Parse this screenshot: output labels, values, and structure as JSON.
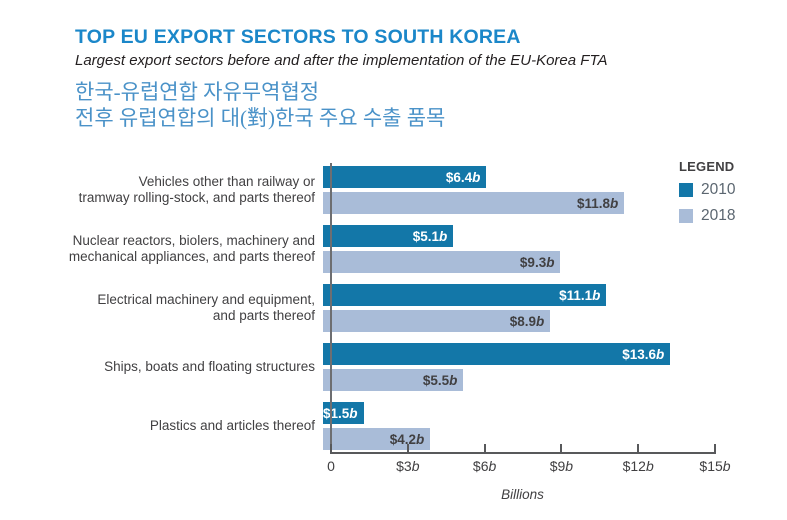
{
  "header": {
    "title": "TOP EU EXPORT SECTORS TO SOUTH KOREA",
    "subtitle": "Largest export sectors before and after the implementation of the EU-Korea FTA",
    "korean_line1": "한국-유럽연합 자유무역협정",
    "korean_line2": "전후 유럽연합의 대(對)한국 주요 수출 품목"
  },
  "legend": {
    "title": "LEGEND",
    "items": [
      {
        "label": "2010",
        "color": "#1377a8"
      },
      {
        "label": "2018",
        "color": "#a9bcd8"
      }
    ]
  },
  "chart_data": {
    "type": "bar",
    "orientation": "horizontal",
    "title": "TOP EU EXPORT SECTORS TO SOUTH KOREA",
    "xlabel": "Billions",
    "xlim": [
      0,
      15
    ],
    "grid": false,
    "legend_position": "top-right",
    "x_ticks": [
      {
        "value": 0,
        "label": "0"
      },
      {
        "value": 3,
        "label": "$3b"
      },
      {
        "value": 6,
        "label": "$6b"
      },
      {
        "value": 9,
        "label": "$9b"
      },
      {
        "value": 12,
        "label": "$12b"
      },
      {
        "value": 15,
        "label": "$15b"
      }
    ],
    "categories": [
      {
        "lines": [
          "Vehicles other than railway or",
          "tramway rolling-stock, and parts thereof"
        ]
      },
      {
        "lines": [
          "Nuclear reactors, biolers, machinery and",
          "mechanical appliances, and parts thereof"
        ]
      },
      {
        "lines": [
          "Electrical machinery and equipment,",
          "and parts thereof"
        ]
      },
      {
        "lines": [
          "Ships, boats and floating structures"
        ]
      },
      {
        "lines": [
          "Plastics and articles thereof"
        ]
      }
    ],
    "series": [
      {
        "name": "2010",
        "color": "#1377a8",
        "label_color": "#ffffff",
        "values": [
          6.4,
          5.1,
          11.1,
          13.6,
          1.5
        ],
        "value_labels": [
          "$6.4b",
          "$5.1b",
          "$11.1b",
          "$13.6b",
          "$1.5b"
        ]
      },
      {
        "name": "2018",
        "color": "#a9bcd8",
        "label_color": "#414042",
        "values": [
          11.8,
          9.3,
          8.9,
          5.5,
          4.2
        ],
        "value_labels": [
          "$11.8b",
          "$9.3b",
          "$8.9b",
          "$5.5b",
          "$4.2b"
        ]
      }
    ]
  },
  "colors": {
    "title_blue": "#1b87c9",
    "korean_blue": "#4a92c8",
    "bar_2010": "#1377a8",
    "bar_2018": "#a9bcd8",
    "axis_gray": "#58595b",
    "text_gray": "#414042"
  }
}
